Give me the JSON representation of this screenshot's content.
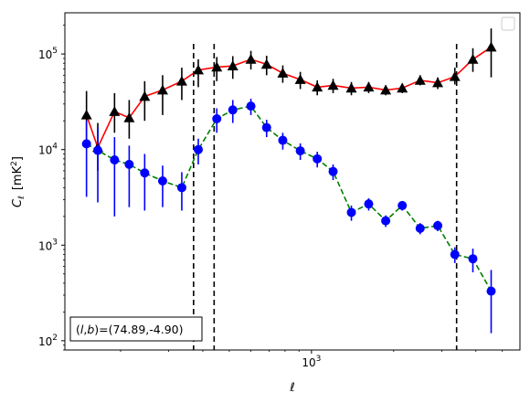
{
  "chart_data": {
    "type": "scatter",
    "x_scale": "log",
    "y_scale": "log",
    "xlim": [
      125,
      5800
    ],
    "ylim": [
      80,
      270000
    ],
    "grid": false,
    "legend": "top-right",
    "xlabel_prefix": "ℓ",
    "ylabel": {
      "symbol": "C",
      "subscript": "ℓ",
      "unit_open": "[mK",
      "unit_power": "2",
      "unit_close": "]"
    },
    "x_tick_major": [
      {
        "value": 1000,
        "base": "10",
        "exp": "3"
      }
    ],
    "x_tick_minor": [
      200,
      300,
      400,
      500,
      600,
      700,
      800,
      900,
      2000,
      3000,
      4000,
      5000
    ],
    "y_tick_major": [
      {
        "value": 100,
        "base": "10",
        "exp": "2"
      },
      {
        "value": 1000,
        "base": "10",
        "exp": "3"
      },
      {
        "value": 10000,
        "base": "10",
        "exp": "4"
      },
      {
        "value": 100000,
        "base": "10",
        "exp": "5"
      }
    ],
    "vlines": [
      370,
      440,
      3400
    ],
    "annotation": {
      "prefix": "(",
      "var1": "l",
      "sep": ",",
      "var2": "b",
      "suffix": ")=(74.89,-4.90)"
    },
    "series": [
      {
        "line_color": "#ff0000",
        "line_style": "solid",
        "marker": "triangle",
        "marker_color": "#000000",
        "points": [
          {
            "x": 150,
            "y": 23000,
            "lo": 11000,
            "hi": 41000
          },
          {
            "x": 165,
            "y": 10500,
            "lo": 6000,
            "hi": 19000
          },
          {
            "x": 190,
            "y": 25000,
            "lo": 15000,
            "hi": 39000
          },
          {
            "x": 215,
            "y": 21500,
            "lo": 13000,
            "hi": 33000
          },
          {
            "x": 245,
            "y": 36000,
            "lo": 20000,
            "hi": 52000
          },
          {
            "x": 285,
            "y": 42000,
            "lo": 23000,
            "hi": 60000
          },
          {
            "x": 335,
            "y": 52000,
            "lo": 33000,
            "hi": 72000
          },
          {
            "x": 385,
            "y": 68000,
            "lo": 45000,
            "hi": 88000
          },
          {
            "x": 450,
            "y": 73000,
            "lo": 52000,
            "hi": 93000
          },
          {
            "x": 515,
            "y": 75000,
            "lo": 55000,
            "hi": 95000
          },
          {
            "x": 600,
            "y": 88000,
            "lo": 69000,
            "hi": 108000
          },
          {
            "x": 685,
            "y": 78000,
            "lo": 60000,
            "hi": 96000
          },
          {
            "x": 785,
            "y": 63000,
            "lo": 50000,
            "hi": 76000
          },
          {
            "x": 910,
            "y": 54000,
            "lo": 43000,
            "hi": 65000
          },
          {
            "x": 1050,
            "y": 45000,
            "lo": 37000,
            "hi": 53000
          },
          {
            "x": 1200,
            "y": 47000,
            "lo": 39000,
            "hi": 55000
          },
          {
            "x": 1400,
            "y": 44000,
            "lo": 37000,
            "hi": 51000
          },
          {
            "x": 1620,
            "y": 45000,
            "lo": 39000,
            "hi": 51000
          },
          {
            "x": 1870,
            "y": 42000,
            "lo": 37000,
            "hi": 47000
          },
          {
            "x": 2150,
            "y": 44000,
            "lo": 39000,
            "hi": 49000
          },
          {
            "x": 2500,
            "y": 53000,
            "lo": 47000,
            "hi": 60000
          },
          {
            "x": 2900,
            "y": 50000,
            "lo": 43000,
            "hi": 57000
          },
          {
            "x": 3350,
            "y": 58000,
            "lo": 48000,
            "hi": 72000
          },
          {
            "x": 3900,
            "y": 88000,
            "lo": 65000,
            "hi": 115000
          },
          {
            "x": 4550,
            "y": 118000,
            "lo": 57000,
            "hi": 185000
          }
        ]
      },
      {
        "line_color": "#008000",
        "line_style": "dashed",
        "marker": "circle",
        "marker_color": "#0000ff",
        "points": [
          {
            "x": 150,
            "y": 11500,
            "lo": 3200,
            "hi": 20000
          },
          {
            "x": 165,
            "y": 9800,
            "lo": 2800,
            "hi": 17000
          },
          {
            "x": 190,
            "y": 7800,
            "lo": 2000,
            "hi": 13500
          },
          {
            "x": 215,
            "y": 7000,
            "lo": 2500,
            "hi": 11000
          },
          {
            "x": 245,
            "y": 5700,
            "lo": 2300,
            "hi": 9000
          },
          {
            "x": 285,
            "y": 4700,
            "lo": 2500,
            "hi": 6800
          },
          {
            "x": 335,
            "y": 4000,
            "lo": 2300,
            "hi": 5800
          },
          {
            "x": 385,
            "y": 10000,
            "lo": 7000,
            "hi": 13000
          },
          {
            "x": 450,
            "y": 21000,
            "lo": 15000,
            "hi": 27000
          },
          {
            "x": 515,
            "y": 26000,
            "lo": 19000,
            "hi": 33000
          },
          {
            "x": 600,
            "y": 28500,
            "lo": 23000,
            "hi": 34000
          },
          {
            "x": 685,
            "y": 17000,
            "lo": 13500,
            "hi": 20500
          },
          {
            "x": 785,
            "y": 12500,
            "lo": 10000,
            "hi": 15000
          },
          {
            "x": 910,
            "y": 9700,
            "lo": 7800,
            "hi": 11600
          },
          {
            "x": 1050,
            "y": 8000,
            "lo": 6500,
            "hi": 9500
          },
          {
            "x": 1200,
            "y": 5900,
            "lo": 4800,
            "hi": 7000
          },
          {
            "x": 1400,
            "y": 2200,
            "lo": 1800,
            "hi": 2600
          },
          {
            "x": 1620,
            "y": 2700,
            "lo": 2300,
            "hi": 3100
          },
          {
            "x": 1870,
            "y": 1800,
            "lo": 1550,
            "hi": 2050
          },
          {
            "x": 2150,
            "y": 2600,
            "lo": 2300,
            "hi": 2900
          },
          {
            "x": 2500,
            "y": 1500,
            "lo": 1300,
            "hi": 1700
          },
          {
            "x": 2900,
            "y": 1600,
            "lo": 1400,
            "hi": 1800
          },
          {
            "x": 3350,
            "y": 800,
            "lo": 650,
            "hi": 950
          },
          {
            "x": 3900,
            "y": 720,
            "lo": 520,
            "hi": 920
          },
          {
            "x": 4550,
            "y": 330,
            "lo": 120,
            "hi": 550
          }
        ]
      }
    ]
  }
}
